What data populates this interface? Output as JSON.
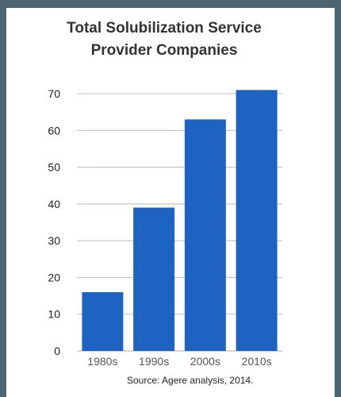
{
  "chart_data": {
    "type": "bar",
    "title_lines": [
      "Total Solubilization Service",
      "Provider Companies"
    ],
    "categories": [
      "1980s",
      "1990s",
      "2000s",
      "2010s"
    ],
    "values": [
      16,
      39,
      63,
      71
    ],
    "ylim": [
      0,
      70
    ],
    "yticks": [
      0,
      10,
      20,
      30,
      40,
      50,
      60,
      70
    ],
    "grid": true,
    "bar_color": "#1f63c2",
    "source": "Source: Agere analysis, 2014."
  }
}
